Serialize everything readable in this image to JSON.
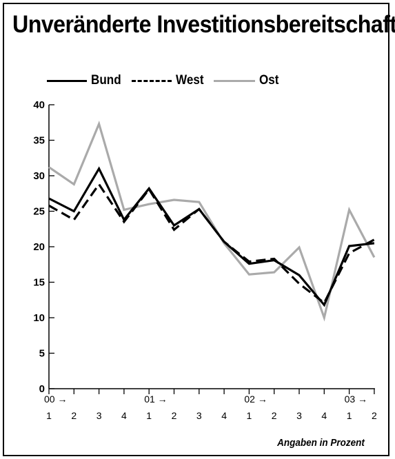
{
  "chart_data": {
    "type": "line",
    "title": "Unveränderte Investitionsbereitschaft",
    "note": "Angaben in Prozent",
    "ylim": [
      0,
      40
    ],
    "yticks": [
      0,
      5,
      10,
      15,
      20,
      25,
      30,
      35,
      40
    ],
    "quarters": [
      "1",
      "2",
      "3",
      "4",
      "1",
      "2",
      "3",
      "4",
      "1",
      "2",
      "3",
      "4",
      "1",
      "2"
    ],
    "year_labels": [
      {
        "label": "00",
        "arrow": "→",
        "quarter_index": 0
      },
      {
        "label": "01",
        "arrow": "→",
        "quarter_index": 4
      },
      {
        "label": "02",
        "arrow": "→",
        "quarter_index": 8
      },
      {
        "label": "03",
        "arrow": "→",
        "quarter_index": 12
      }
    ],
    "grid": false,
    "legend_position": "top-left",
    "series": [
      {
        "name": "Bund",
        "color": "#000000",
        "style": "solid",
        "values": [
          26.8,
          25.0,
          31.0,
          23.8,
          28.2,
          23.0,
          25.3,
          20.7,
          17.6,
          18.1,
          16.0,
          11.8,
          20.1,
          20.5
        ]
      },
      {
        "name": "West",
        "color": "#000000",
        "style": "dashed",
        "values": [
          25.8,
          23.8,
          28.8,
          23.5,
          28.1,
          22.4,
          25.3,
          20.7,
          17.9,
          18.3,
          14.8,
          12.1,
          19.1,
          21.0
        ]
      },
      {
        "name": "Ost",
        "color": "#aaaaaa",
        "style": "solid",
        "values": [
          31.2,
          28.8,
          37.3,
          25.2,
          26.0,
          26.6,
          26.3,
          20.5,
          16.1,
          16.4,
          19.9,
          10.0,
          25.2,
          18.5
        ]
      }
    ]
  }
}
